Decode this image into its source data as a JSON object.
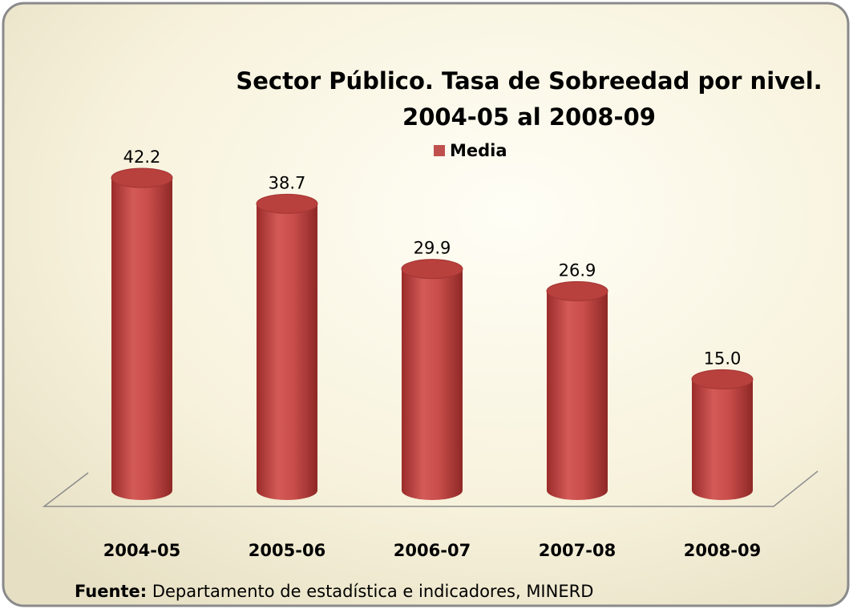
{
  "chart_data": {
    "type": "bar",
    "title": "Sector Público. Tasa de Sobreedad por nivel.",
    "subtitle": "2004-05 al 2008-09",
    "categories": [
      "2004-05",
      "2005-06",
      "2006-07",
      "2007-08",
      "2008-09"
    ],
    "series": [
      {
        "name": "Media",
        "color": "#c0504d",
        "values": [
          42.2,
          38.7,
          29.9,
          26.9,
          15.0
        ],
        "value_labels": [
          "42.2",
          "38.7",
          "29.9",
          "26.9",
          "15.0"
        ]
      }
    ],
    "source": {
      "label": "Fuente:",
      "text": "Departamento de estadística e indicadores, MINERD"
    }
  }
}
